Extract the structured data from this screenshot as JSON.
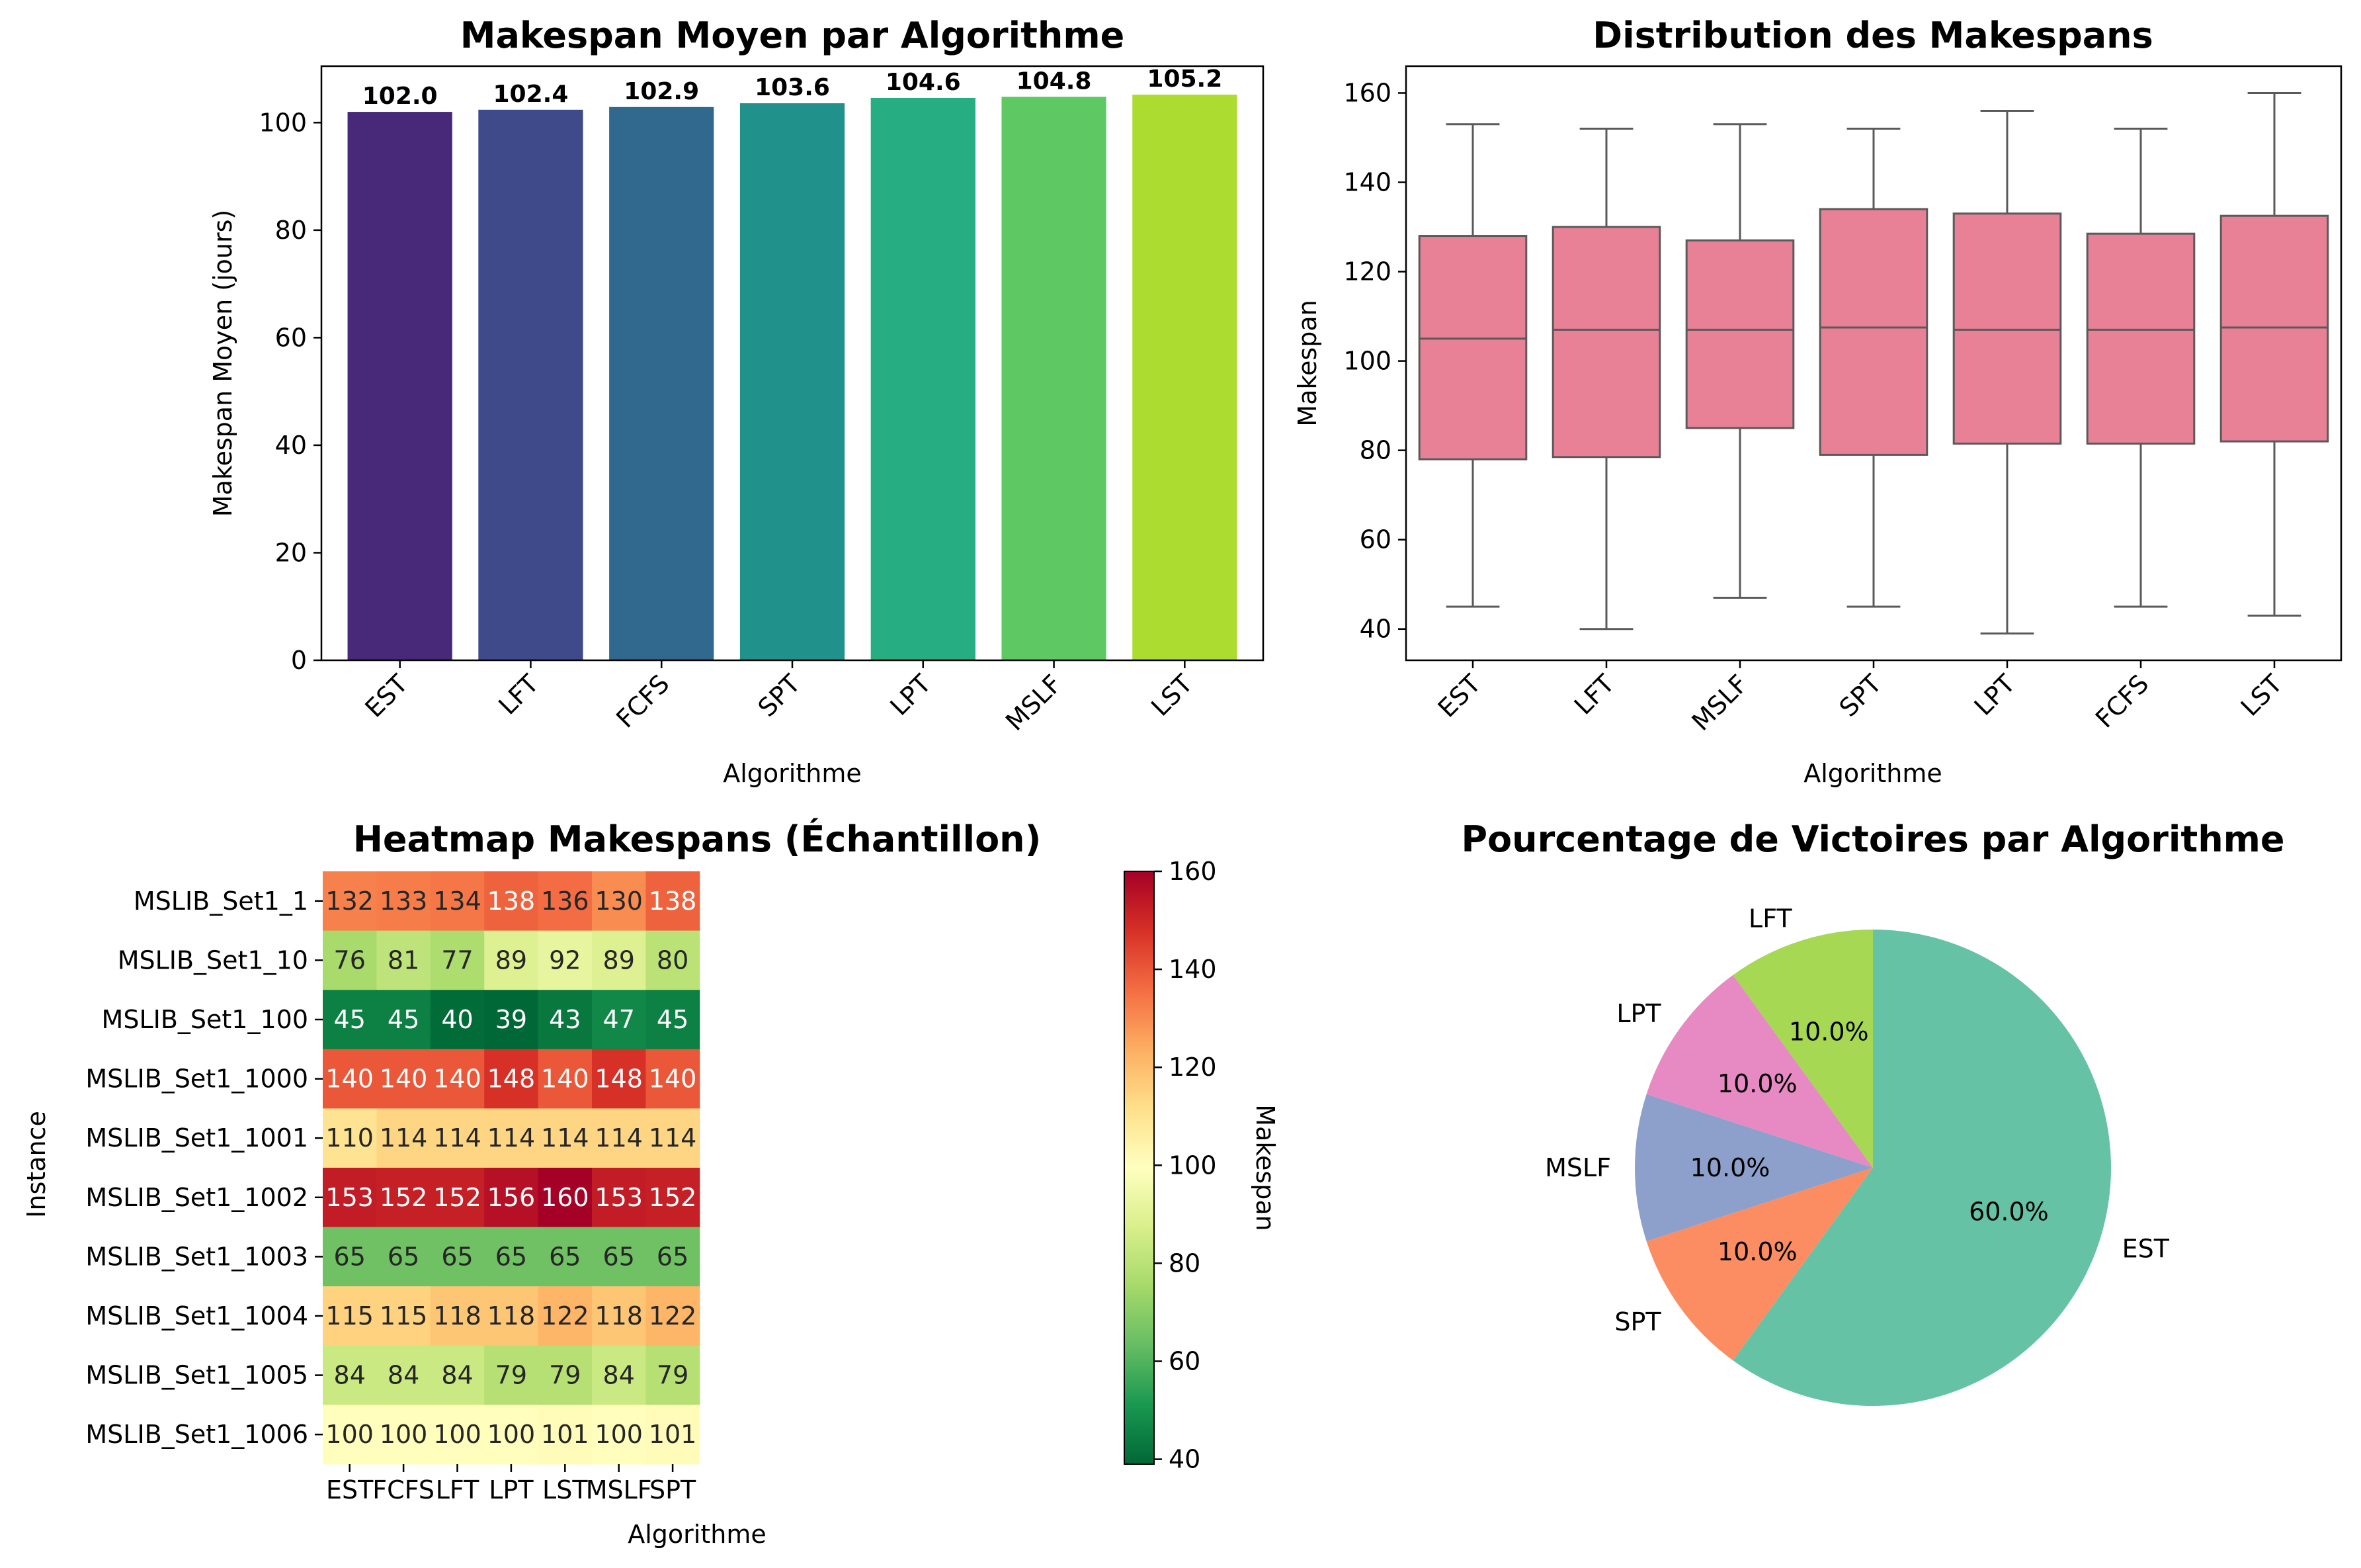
{
  "chart_data": [
    {
      "type": "bar",
      "title": "Makespan Moyen par Algorithme",
      "xlabel": "Algorithme",
      "ylabel": "Makespan Moyen (jours)",
      "categories": [
        "EST",
        "LFT",
        "FCFS",
        "SPT",
        "LPT",
        "MSLF",
        "LST"
      ],
      "values": [
        102.0,
        102.4,
        102.9,
        103.6,
        104.6,
        104.8,
        105.2
      ],
      "data_labels": [
        "102.0",
        "102.4",
        "102.9",
        "103.6",
        "104.6",
        "104.8",
        "105.2"
      ],
      "ylim": [
        0,
        110.5
      ],
      "yticks": [
        0,
        20,
        40,
        60,
        80,
        100
      ],
      "colors": [
        "#482878",
        "#3e4a89",
        "#31688e",
        "#21918c",
        "#26ad81",
        "#5ec962",
        "#addc30"
      ],
      "grid": false
    },
    {
      "type": "box",
      "title": "Distribution des Makespans",
      "xlabel": "Algorithme",
      "ylabel": "Makespan",
      "categories": [
        "EST",
        "LFT",
        "MSLF",
        "SPT",
        "LPT",
        "FCFS",
        "LST"
      ],
      "boxes": [
        {
          "min": 45,
          "q1": 78,
          "median": 105,
          "q3": 128,
          "max": 153
        },
        {
          "min": 40,
          "q1": 78.5,
          "median": 107,
          "q3": 130,
          "max": 152
        },
        {
          "min": 47,
          "q1": 85,
          "median": 107,
          "q3": 127,
          "max": 153
        },
        {
          "min": 45,
          "q1": 79,
          "median": 107.5,
          "q3": 134,
          "max": 152
        },
        {
          "min": 39,
          "q1": 81.5,
          "median": 107,
          "q3": 133,
          "max": 156
        },
        {
          "min": 45,
          "q1": 81.5,
          "median": 107,
          "q3": 128.5,
          "max": 152
        },
        {
          "min": 43,
          "q1": 82,
          "median": 107.5,
          "q3": 132.5,
          "max": 160
        }
      ],
      "ylim": [
        33,
        166
      ],
      "yticks": [
        40,
        60,
        80,
        100,
        120,
        140,
        160
      ],
      "box_color": "#e88195",
      "line_color": "#5a5a5a",
      "grid": false
    },
    {
      "type": "heatmap",
      "title": "Heatmap Makespans (Échantillon)",
      "xlabel": "Algorithme",
      "ylabel": "Instance",
      "columns": [
        "EST",
        "FCFS",
        "LFT",
        "LPT",
        "LST",
        "MSLF",
        "SPT"
      ],
      "rows": [
        "MSLIB_Set1_1",
        "MSLIB_Set1_10",
        "MSLIB_Set1_100",
        "MSLIB_Set1_1000",
        "MSLIB_Set1_1001",
        "MSLIB_Set1_1002",
        "MSLIB_Set1_1003",
        "MSLIB_Set1_1004",
        "MSLIB_Set1_1005",
        "MSLIB_Set1_1006"
      ],
      "values": [
        [
          132,
          133,
          134,
          138,
          136,
          130,
          138
        ],
        [
          76,
          81,
          77,
          89,
          92,
          89,
          80
        ],
        [
          45,
          45,
          40,
          39,
          43,
          47,
          45
        ],
        [
          140,
          140,
          140,
          148,
          140,
          148,
          140
        ],
        [
          110,
          114,
          114,
          114,
          114,
          114,
          114
        ],
        [
          153,
          152,
          152,
          156,
          160,
          153,
          152
        ],
        [
          65,
          65,
          65,
          65,
          65,
          65,
          65
        ],
        [
          115,
          115,
          118,
          118,
          122,
          118,
          122
        ],
        [
          84,
          84,
          84,
          79,
          79,
          84,
          79
        ],
        [
          100,
          100,
          100,
          100,
          101,
          100,
          101
        ]
      ],
      "colorbar_label": "Makespan",
      "colorbar_range": [
        39,
        160
      ],
      "colorbar_ticks": [
        40,
        60,
        80,
        100,
        120,
        140,
        160
      ],
      "colormap": "RdYlGn_r"
    },
    {
      "type": "pie",
      "title": "Pourcentage de Victoires par Algorithme",
      "labels": [
        "LFT",
        "LPT",
        "MSLF",
        "SPT",
        "EST"
      ],
      "values": [
        10.0,
        10.0,
        10.0,
        10.0,
        60.0
      ],
      "pct_labels": [
        "10.0%",
        "10.0%",
        "10.0%",
        "10.0%",
        "60.0%"
      ],
      "colors": [
        "#a6d854",
        "#e78ac3",
        "#8da0cb",
        "#fc8d62",
        "#66c2a5"
      ],
      "start": "top, counter-clockwise from LFT"
    }
  ]
}
